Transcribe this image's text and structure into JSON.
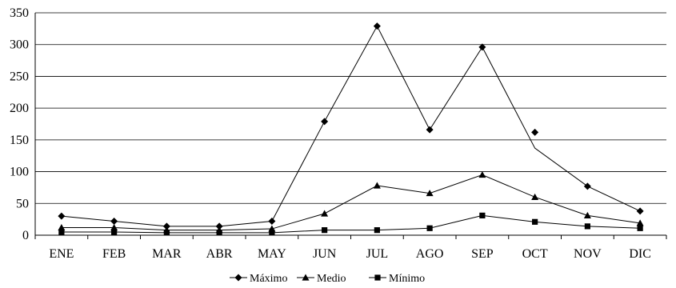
{
  "chart_data": {
    "type": "line",
    "title": "",
    "xlabel": "",
    "ylabel": "",
    "categories": [
      "ENE",
      "FEB",
      "MAR",
      "ABR",
      "MAY",
      "JUN",
      "JUL",
      "AGO",
      "SEP",
      "OCT",
      "NOV",
      "DIC"
    ],
    "ylim": [
      0,
      350
    ],
    "yticks": [
      "0",
      "50",
      "100",
      "150",
      "200",
      "250",
      "300",
      "350"
    ],
    "grid": "horizontal",
    "legend_position": "bottom",
    "colors": {
      "line": "#000000",
      "grid": "#000000",
      "background": "#ffffff"
    },
    "series": [
      {
        "name": "Máximo",
        "marker": "diamond",
        "values": [
          30,
          22,
          14,
          14,
          22,
          179,
          329,
          166,
          296,
          162,
          77,
          38
        ],
        "line_values": [
          30,
          22,
          14,
          14,
          22,
          179,
          329,
          166,
          296,
          137,
          77,
          38
        ]
      },
      {
        "name": "Medio",
        "marker": "triangle",
        "values": [
          12,
          12,
          8,
          8,
          10,
          34,
          78,
          66,
          95,
          60,
          31,
          19
        ]
      },
      {
        "name": "Mínimo",
        "marker": "square",
        "values": [
          5,
          5,
          4,
          4,
          4,
          8,
          8,
          11,
          31,
          21,
          14,
          11
        ]
      }
    ]
  }
}
